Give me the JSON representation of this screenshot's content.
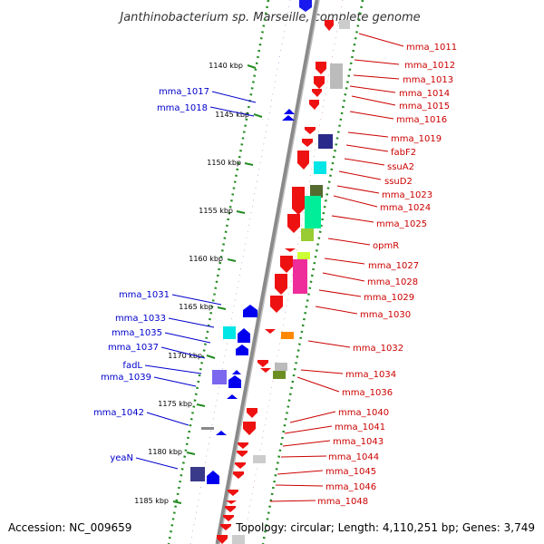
{
  "title": "Janthinobacterium sp. Marseille, complete genome",
  "footer": {
    "accession": "Accession: NC_009659",
    "topology": "Topology: circular; Length: 4,110,251 bp; Genes: 3,749"
  },
  "colors": {
    "backbone": "#888888",
    "scale_dots": "#228b22",
    "plus_strand": "#0000cc",
    "minus_strand": "#cc0000",
    "forward_gene": "#0000ff",
    "reverse_gene": "#ff0000"
  },
  "kbp_ticks": [
    "1140 kbp",
    "1145 kbp",
    "1150 kbp",
    "1155 kbp",
    "1160 kbp",
    "1165 kbp",
    "1170 kbp",
    "1175 kbp",
    "1180 kbp",
    "1185 kbp"
  ],
  "left_labels": [
    "mma_1017",
    "mma_1018",
    "mma_1031",
    "mma_1033",
    "mma_1035",
    "mma_1037",
    "fadL",
    "mma_1039",
    "mma_1042",
    "yeaN"
  ],
  "right_labels": [
    "mma_1011",
    "mma_1012",
    "mma_1013",
    "mma_1014",
    "mma_1015",
    "mma_1016",
    "mma_1019",
    "fabF2",
    "ssuA2",
    "ssuD2",
    "mma_1023",
    "mma_1024",
    "mma_1025",
    "opmR",
    "mma_1027",
    "mma_1028",
    "mma_1029",
    "mma_1030",
    "mma_1032",
    "mma_1034",
    "mma_1036",
    "mma_1040",
    "mma_1041",
    "mma_1043",
    "mma_1044",
    "mma_1045",
    "mma_1046",
    "mma_1048"
  ]
}
